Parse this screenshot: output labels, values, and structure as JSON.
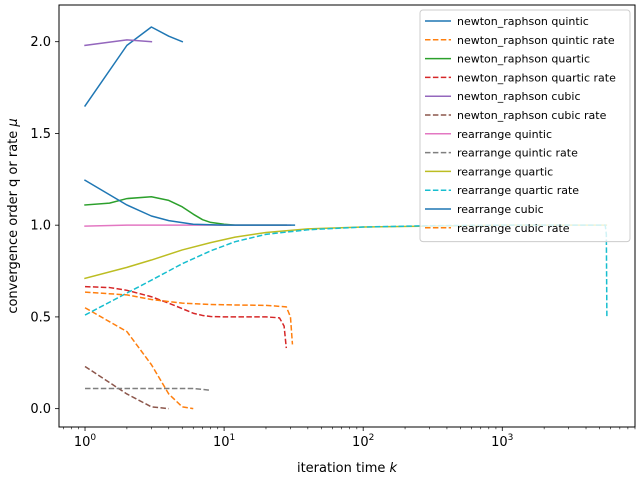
{
  "chart_data": {
    "type": "line",
    "xlabel": "iteration time k",
    "ylabel": "convergence order q or rate μ",
    "xscale": "log",
    "xlim": [
      0.65,
      9000
    ],
    "ylim": [
      -0.1,
      2.2
    ],
    "xticks": [
      {
        "value": 1,
        "base": "10",
        "exp": "0"
      },
      {
        "value": 10,
        "base": "10",
        "exp": "1"
      },
      {
        "value": 100,
        "base": "10",
        "exp": "2"
      },
      {
        "value": 1000,
        "base": "10",
        "exp": "3"
      }
    ],
    "yticks": [
      {
        "value": 0.0,
        "label": "0.0"
      },
      {
        "value": 0.5,
        "label": "0.5"
      },
      {
        "value": 1.0,
        "label": "1.0"
      },
      {
        "value": 1.5,
        "label": "1.5"
      },
      {
        "value": 2.0,
        "label": "2.0"
      }
    ],
    "grid": false,
    "legend_position": "top-right",
    "series": [
      {
        "name": "newton_raphson quintic",
        "color": "#1f77b4",
        "dash": "solid",
        "x": [
          1,
          2,
          3,
          4,
          5
        ],
        "y": [
          1.65,
          1.98,
          2.08,
          2.03,
          2.0
        ]
      },
      {
        "name": "newton_raphson quintic rate",
        "color": "#ff7f0e",
        "dash": "dashed",
        "x": [
          1,
          2,
          3,
          4,
          5,
          6
        ],
        "y": [
          0.55,
          0.42,
          0.24,
          0.08,
          0.01,
          0.0
        ]
      },
      {
        "name": "newton_raphson quartic",
        "color": "#2ca02c",
        "dash": "solid",
        "x": [
          1,
          1.5,
          2,
          3,
          4,
          5,
          6,
          7,
          8,
          10,
          12,
          15,
          20,
          28
        ],
        "y": [
          1.11,
          1.12,
          1.145,
          1.155,
          1.135,
          1.1,
          1.06,
          1.03,
          1.015,
          1.005,
          1.0,
          1.0,
          1.0,
          1.0
        ]
      },
      {
        "name": "newton_raphson quartic rate",
        "color": "#d62728",
        "dash": "dashed",
        "x": [
          1,
          1.5,
          2,
          3,
          4,
          5,
          6,
          7,
          8,
          10,
          15,
          20,
          25,
          27,
          28
        ],
        "y": [
          0.665,
          0.66,
          0.645,
          0.61,
          0.575,
          0.545,
          0.52,
          0.508,
          0.502,
          0.5,
          0.5,
          0.5,
          0.495,
          0.45,
          0.33
        ]
      },
      {
        "name": "newton_raphson cubic",
        "color": "#9467bd",
        "dash": "solid",
        "x": [
          1,
          2,
          3
        ],
        "y": [
          1.98,
          2.01,
          2.0
        ]
      },
      {
        "name": "newton_raphson cubic rate",
        "color": "#8c564b",
        "dash": "dashed",
        "x": [
          1,
          2,
          3,
          4
        ],
        "y": [
          0.23,
          0.08,
          0.01,
          0.0
        ]
      },
      {
        "name": "rearrange quintic",
        "color": "#e377c2",
        "dash": "solid",
        "x": [
          1,
          2,
          3,
          5,
          10,
          20,
          30
        ],
        "y": [
          0.995,
          1.0,
          1.0,
          1.0,
          1.0,
          1.0,
          1.0
        ]
      },
      {
        "name": "rearrange quintic rate",
        "color": "#7f7f7f",
        "dash": "dashed",
        "x": [
          1,
          2,
          4,
          6,
          8
        ],
        "y": [
          0.11,
          0.11,
          0.11,
          0.11,
          0.1
        ]
      },
      {
        "name": "rearrange quartic",
        "color": "#bcbd22",
        "dash": "solid",
        "x": [
          1,
          2,
          3,
          5,
          8,
          12,
          20,
          40,
          100,
          300,
          1000,
          5600
        ],
        "y": [
          0.71,
          0.77,
          0.81,
          0.865,
          0.905,
          0.935,
          0.96,
          0.98,
          0.99,
          0.995,
          1.0,
          1.0
        ]
      },
      {
        "name": "rearrange quartic rate",
        "color": "#17becf",
        "dash": "dashed",
        "x": [
          1,
          2,
          3,
          5,
          8,
          12,
          20,
          40,
          100,
          300,
          1000,
          3000,
          5500,
          5600,
          5650
        ],
        "y": [
          0.51,
          0.63,
          0.7,
          0.79,
          0.86,
          0.91,
          0.95,
          0.975,
          0.99,
          0.997,
          1.0,
          1.0,
          1.0,
          0.95,
          0.5
        ]
      },
      {
        "name": "rearrange cubic",
        "color": "#1f77b4",
        "dash": "solid",
        "x": [
          1,
          2,
          3,
          4,
          6,
          10,
          20,
          32
        ],
        "y": [
          1.245,
          1.11,
          1.05,
          1.025,
          1.005,
          1.0,
          1.0,
          1.0
        ]
      },
      {
        "name": "rearrange cubic rate",
        "color": "#ff7f0e",
        "dash": "dashed",
        "x": [
          1,
          2,
          3,
          5,
          8,
          12,
          20,
          28,
          30,
          31
        ],
        "y": [
          0.635,
          0.62,
          0.595,
          0.575,
          0.568,
          0.565,
          0.563,
          0.555,
          0.5,
          0.35
        ]
      }
    ]
  }
}
